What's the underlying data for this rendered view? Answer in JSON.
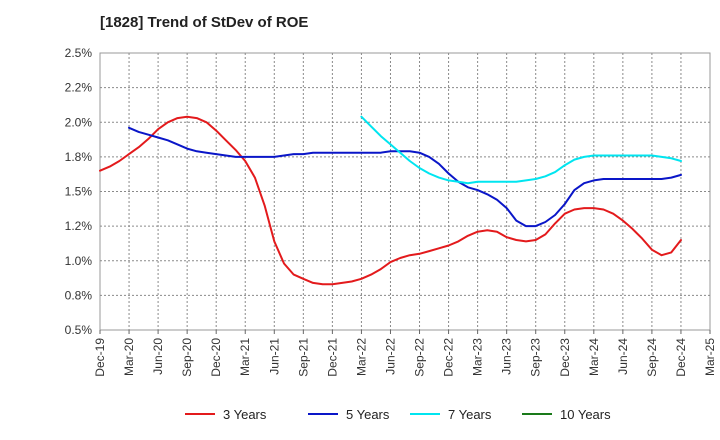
{
  "chart_data": {
    "type": "line",
    "title": "[1828]  Trend of StDev of ROE",
    "xlabel": "",
    "ylabel": "",
    "x_ticks": [
      "Dec-19",
      "Mar-20",
      "Jun-20",
      "Sep-20",
      "Dec-20",
      "Mar-21",
      "Jun-21",
      "Sep-21",
      "Dec-21",
      "Mar-22",
      "Jun-22",
      "Sep-22",
      "Dec-22",
      "Mar-23",
      "Jun-23",
      "Sep-23",
      "Dec-23",
      "Mar-24",
      "Jun-24",
      "Sep-24",
      "Dec-24",
      "Mar-25"
    ],
    "y_ticks": [
      "0.5%",
      "0.8%",
      "1.0%",
      "1.2%",
      "1.5%",
      "1.8%",
      "2.0%",
      "2.2%",
      "2.5%"
    ],
    "ylim": [
      0.5,
      2.5
    ],
    "grid": true,
    "legend_position": "bottom",
    "series": [
      {
        "name": "3 Years",
        "color": "#e31a1c",
        "x": [
          0,
          1,
          2,
          3,
          4,
          5,
          6,
          7,
          8,
          9,
          10,
          11,
          12,
          13,
          14,
          15,
          16,
          17,
          18,
          19,
          20,
          21,
          22,
          23,
          24,
          25,
          26,
          27,
          28,
          29,
          30,
          31,
          32,
          33,
          34,
          35,
          36,
          37,
          38,
          39,
          40,
          41,
          42,
          43,
          44,
          45,
          46,
          47,
          48,
          49,
          50,
          51,
          52,
          53,
          54,
          55,
          56,
          57,
          58,
          59,
          60
        ],
        "y": [
          1.65,
          1.68,
          1.72,
          1.77,
          1.82,
          1.88,
          1.95,
          2.0,
          2.03,
          2.04,
          2.03,
          2.0,
          1.94,
          1.87,
          1.8,
          1.72,
          1.6,
          1.4,
          1.14,
          0.98,
          0.9,
          0.87,
          0.84,
          0.83,
          0.83,
          0.84,
          0.85,
          0.87,
          0.9,
          0.94,
          0.99,
          1.02,
          1.04,
          1.05,
          1.07,
          1.09,
          1.11,
          1.14,
          1.18,
          1.21,
          1.22,
          1.21,
          1.17,
          1.15,
          1.14,
          1.15,
          1.19,
          1.27,
          1.34,
          1.37,
          1.38,
          1.38,
          1.37,
          1.34,
          1.29,
          1.23,
          1.16,
          1.08,
          1.04,
          1.06,
          1.15
        ]
      },
      {
        "name": "5 Years",
        "color": "#0a16c8",
        "x": [
          3,
          4,
          5,
          6,
          7,
          8,
          9,
          10,
          11,
          12,
          13,
          14,
          15,
          16,
          17,
          18,
          19,
          20,
          21,
          22,
          23,
          24,
          25,
          26,
          27,
          28,
          29,
          30,
          31,
          32,
          33,
          34,
          35,
          36,
          37,
          38,
          39,
          40,
          41,
          42,
          43,
          44,
          45,
          46,
          47,
          48,
          49,
          50,
          51,
          52,
          53,
          54,
          55,
          56,
          57,
          58,
          59,
          60
        ],
        "y": [
          1.96,
          1.93,
          1.91,
          1.89,
          1.87,
          1.84,
          1.81,
          1.79,
          1.78,
          1.77,
          1.76,
          1.75,
          1.75,
          1.75,
          1.75,
          1.75,
          1.76,
          1.77,
          1.77,
          1.78,
          1.78,
          1.78,
          1.78,
          1.78,
          1.78,
          1.78,
          1.78,
          1.79,
          1.79,
          1.79,
          1.78,
          1.75,
          1.7,
          1.63,
          1.57,
          1.53,
          1.51,
          1.48,
          1.44,
          1.38,
          1.29,
          1.25,
          1.25,
          1.28,
          1.33,
          1.41,
          1.51,
          1.56,
          1.58,
          1.59,
          1.59,
          1.59,
          1.59,
          1.59,
          1.59,
          1.59,
          1.6,
          1.62
        ]
      },
      {
        "name": "7 Years",
        "color": "#00e5f0",
        "x": [
          27,
          28,
          29,
          30,
          31,
          32,
          33,
          34,
          35,
          36,
          37,
          38,
          39,
          40,
          41,
          42,
          43,
          44,
          45,
          46,
          47,
          48,
          49,
          50,
          51,
          52,
          53,
          54,
          55,
          56,
          57,
          58,
          59,
          60
        ],
        "y": [
          2.04,
          1.97,
          1.9,
          1.84,
          1.78,
          1.72,
          1.67,
          1.63,
          1.6,
          1.58,
          1.57,
          1.56,
          1.57,
          1.57,
          1.57,
          1.57,
          1.57,
          1.58,
          1.59,
          1.61,
          1.64,
          1.69,
          1.73,
          1.75,
          1.76,
          1.76,
          1.76,
          1.76,
          1.76,
          1.76,
          1.76,
          1.75,
          1.74,
          1.72
        ]
      },
      {
        "name": "10 Years",
        "color": "#1a7a1a",
        "x": [],
        "y": []
      }
    ]
  }
}
